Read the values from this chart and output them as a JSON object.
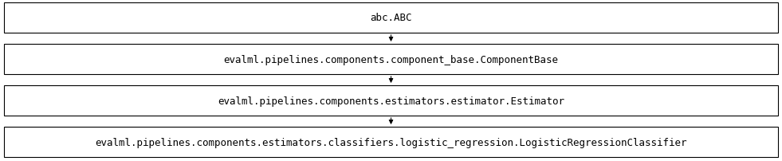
{
  "boxes": [
    "abc.ABC",
    "evalml.pipelines.components.component_base.ComponentBase",
    "evalml.pipelines.components.estimators.estimator.Estimator",
    "evalml.pipelines.components.estimators.classifiers.logistic_regression.LogisticRegressionClassifier"
  ],
  "bg_color": "#ffffff",
  "box_edge_color": "#000000",
  "box_face_color": "#ffffff",
  "text_color": "#000000",
  "arrow_color": "#000000",
  "font_size": 9,
  "fig_width": 9.81,
  "fig_height": 2.03,
  "dpi": 100
}
